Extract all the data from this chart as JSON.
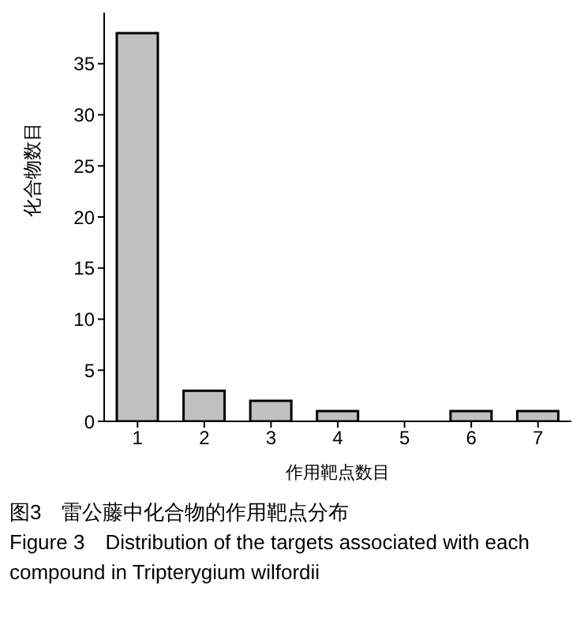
{
  "chart_data": {
    "type": "bar",
    "xlabel": "作用靶点数目",
    "ylabel": "化合物数目",
    "categories": [
      "1",
      "2",
      "3",
      "4",
      "5",
      "6",
      "7"
    ],
    "values": [
      38,
      3,
      2,
      1,
      0,
      1,
      1
    ],
    "color": "#c0c0c0",
    "ylim": [
      0,
      40
    ],
    "yticks": [
      0,
      5,
      10,
      15,
      20,
      25,
      30,
      35
    ],
    "grid": false,
    "annotations": [
      "图3　雷公藤中化合物的作用靶点分布",
      "Figure 3　Distribution of the targets associated with each compound in Tripterygium wilfordii"
    ]
  }
}
